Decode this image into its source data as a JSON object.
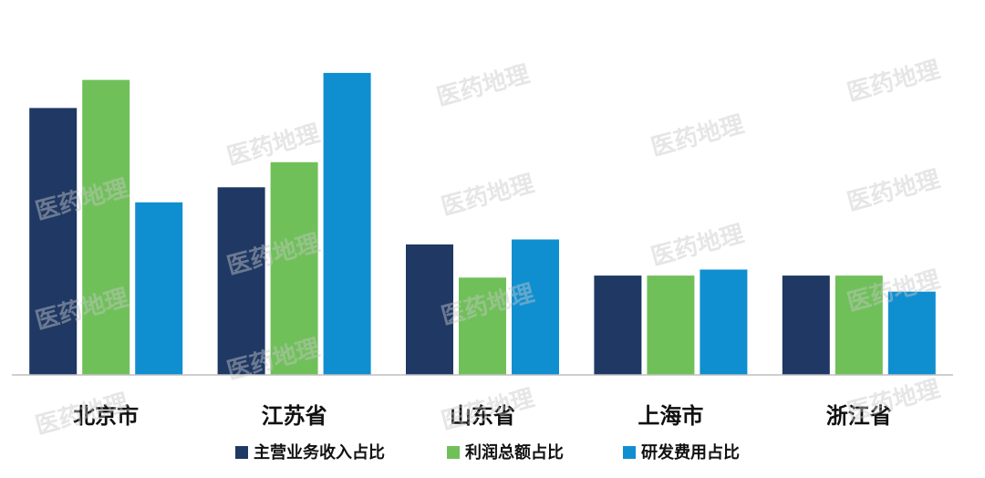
{
  "chart_data": {
    "type": "bar",
    "watermark": "医药地理",
    "categories": [
      "北京市",
      "江苏省",
      "山东省",
      "上海市",
      "浙江省"
    ],
    "series": [
      {
        "name": "主营业务收入占比",
        "color": "#1f3864",
        "values": [
          26.6,
          18.7,
          13.0,
          9.9,
          9.9
        ]
      },
      {
        "name": "利润总额占比",
        "color": "#70c05a",
        "values": [
          29.4,
          21.2,
          9.7,
          9.9,
          9.9
        ]
      },
      {
        "name": "研发费用占比",
        "color": "#0f8fd0",
        "values": [
          17.2,
          30.1,
          13.5,
          10.5,
          8.3
        ]
      }
    ],
    "ylim": [
      0,
      32
    ],
    "grid": false,
    "legend": "bottom"
  }
}
